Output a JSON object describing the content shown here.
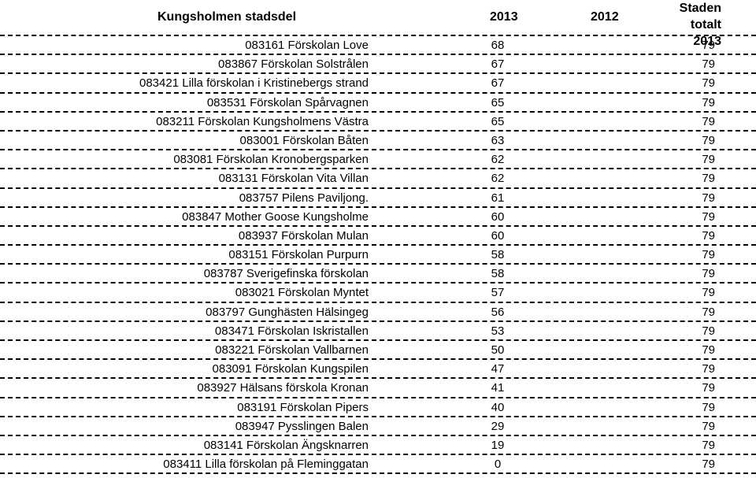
{
  "header": {
    "district": "Kungsholmen stadsdel",
    "year_2013": "2013",
    "year_2012": "2012",
    "total_line1": "Staden totalt",
    "total_line2": "2013"
  },
  "rows": [
    {
      "name": "083161 Förskolan Love",
      "v2013": "68",
      "total": "79"
    },
    {
      "name": "083867 Förskolan Solstrålen",
      "v2013": "67",
      "total": "79"
    },
    {
      "name": "083421 Lilla förskolan i Kristinebergs strand",
      "v2013": "67",
      "total": "79"
    },
    {
      "name": "083531 Förskolan Spårvagnen",
      "v2013": "65",
      "total": "79"
    },
    {
      "name": "083211 Förskolan Kungsholmens Västra",
      "v2013": "65",
      "total": "79"
    },
    {
      "name": "083001 Förskolan Båten",
      "v2013": "63",
      "total": "79"
    },
    {
      "name": "083081 Förskolan Kronobergsparken",
      "v2013": "62",
      "total": "79"
    },
    {
      "name": "083131 Förskolan Vita Villan",
      "v2013": "62",
      "total": "79"
    },
    {
      "name": "083757 Pilens Paviljong.",
      "v2013": "61",
      "total": "79"
    },
    {
      "name": "083847 Mother Goose Kungsholme",
      "v2013": "60",
      "total": "79"
    },
    {
      "name": "083937 Förskolan Mulan",
      "v2013": "60",
      "total": "79"
    },
    {
      "name": "083151 Förskolan Purpurn",
      "v2013": "58",
      "total": "79"
    },
    {
      "name": "083787 Sverigefinska förskolan",
      "v2013": "58",
      "total": "79"
    },
    {
      "name": "083021 Förskolan Myntet",
      "v2013": "57",
      "total": "79"
    },
    {
      "name": "083797 Gunghästen Hälsingeg",
      "v2013": "56",
      "total": "79"
    },
    {
      "name": "083471 Förskolan Iskristallen",
      "v2013": "53",
      "total": "79"
    },
    {
      "name": "083221 Förskolan Vallbarnen",
      "v2013": "50",
      "total": "79"
    },
    {
      "name": "083091 Förskolan Kungspilen",
      "v2013": "47",
      "total": "79"
    },
    {
      "name": "083927 Hälsans förskola Kronan",
      "v2013": "41",
      "total": "79"
    },
    {
      "name": "083191 Förskolan Pipers",
      "v2013": "40",
      "total": "79"
    },
    {
      "name": "083947 Pysslingen Balen",
      "v2013": "29",
      "total": "79"
    },
    {
      "name": "083141 Förskolan Ängsknarren",
      "v2013": "19",
      "total": "79"
    },
    {
      "name": "083411 Lilla förskolan på Fleminggatan",
      "v2013": "0",
      "total": "79"
    }
  ]
}
